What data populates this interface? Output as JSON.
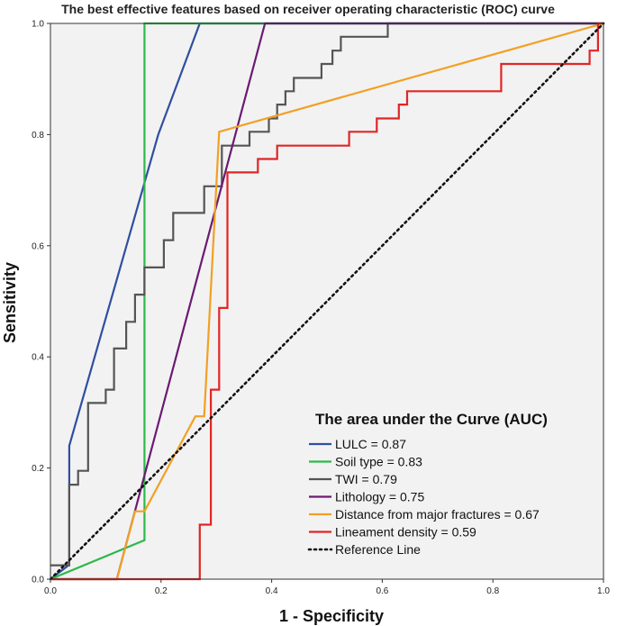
{
  "chart_data": {
    "type": "line",
    "title": "The best  effective features based on receiver operating characteristic (ROC) curve",
    "xlabel": "1 - Specificity",
    "ylabel": "Sensitivity",
    "xlim": [
      0,
      1
    ],
    "ylim": [
      0,
      1
    ],
    "x_ticks": [
      "0.0",
      "0.2",
      "0.4",
      "0.6",
      "0.8",
      "1.0"
    ],
    "y_ticks": [
      "0.0",
      "0.2",
      "0.4",
      "0.6",
      "0.8",
      "1.0"
    ],
    "background": "#f2f2f2",
    "legend": {
      "title": "The area under the Curve (AUC)",
      "position": "bottom-right"
    },
    "series": [
      {
        "name": "LULC = 0.87",
        "color": "#2f4fa0",
        "dash": "solid",
        "points": [
          [
            0,
            0
          ],
          [
            0.034,
            0.026
          ],
          [
            0.034,
            0.24
          ],
          [
            0.195,
            0.8
          ],
          [
            0.27,
            1.0
          ],
          [
            1.0,
            1.0
          ]
        ]
      },
      {
        "name": "Soil type = 0.83",
        "color": "#2db84a",
        "dash": "solid",
        "points": [
          [
            0,
            0
          ],
          [
            0.17,
            0.07
          ],
          [
            0.17,
            1.0
          ],
          [
            1.0,
            1.0
          ]
        ]
      },
      {
        "name": "TWI = 0.79",
        "color": "#555555",
        "dash": "solid",
        "points": [
          [
            0,
            0.025
          ],
          [
            0.034,
            0.025
          ],
          [
            0.034,
            0.17
          ],
          [
            0.05,
            0.17
          ],
          [
            0.05,
            0.195
          ],
          [
            0.068,
            0.195
          ],
          [
            0.068,
            0.317
          ],
          [
            0.1,
            0.317
          ],
          [
            0.1,
            0.341
          ],
          [
            0.115,
            0.341
          ],
          [
            0.115,
            0.415
          ],
          [
            0.137,
            0.415
          ],
          [
            0.137,
            0.463
          ],
          [
            0.153,
            0.463
          ],
          [
            0.153,
            0.512
          ],
          [
            0.17,
            0.512
          ],
          [
            0.17,
            0.561
          ],
          [
            0.205,
            0.561
          ],
          [
            0.205,
            0.61
          ],
          [
            0.222,
            0.61
          ],
          [
            0.222,
            0.659
          ],
          [
            0.278,
            0.659
          ],
          [
            0.278,
            0.707
          ],
          [
            0.31,
            0.707
          ],
          [
            0.31,
            0.78
          ],
          [
            0.36,
            0.78
          ],
          [
            0.36,
            0.805
          ],
          [
            0.395,
            0.805
          ],
          [
            0.395,
            0.829
          ],
          [
            0.41,
            0.829
          ],
          [
            0.41,
            0.854
          ],
          [
            0.425,
            0.854
          ],
          [
            0.425,
            0.878
          ],
          [
            0.44,
            0.878
          ],
          [
            0.44,
            0.902
          ],
          [
            0.49,
            0.902
          ],
          [
            0.49,
            0.927
          ],
          [
            0.51,
            0.927
          ],
          [
            0.51,
            0.951
          ],
          [
            0.525,
            0.951
          ],
          [
            0.525,
            0.976
          ],
          [
            0.61,
            0.976
          ],
          [
            0.61,
            1.0
          ],
          [
            1.0,
            1.0
          ]
        ]
      },
      {
        "name": "Lithology = 0.75",
        "color": "#6b1a73",
        "dash": "solid",
        "points": [
          [
            0,
            0
          ],
          [
            0.12,
            0
          ],
          [
            0.388,
            1.0
          ],
          [
            1.0,
            1.0
          ]
        ]
      },
      {
        "name": "Distance from major fractures = 0.67",
        "color": "#f2a024",
        "dash": "solid",
        "points": [
          [
            0,
            0
          ],
          [
            0.12,
            0
          ],
          [
            0.153,
            0.122
          ],
          [
            0.17,
            0.122
          ],
          [
            0.262,
            0.293
          ],
          [
            0.278,
            0.293
          ],
          [
            0.305,
            0.805
          ],
          [
            1.0,
            1.0
          ]
        ]
      },
      {
        "name": "Lineament density = 0.59",
        "color": "#e02626",
        "dash": "solid",
        "points": [
          [
            0,
            0
          ],
          [
            0.27,
            0
          ],
          [
            0.27,
            0.098
          ],
          [
            0.29,
            0.098
          ],
          [
            0.29,
            0.341
          ],
          [
            0.305,
            0.341
          ],
          [
            0.305,
            0.488
          ],
          [
            0.32,
            0.488
          ],
          [
            0.32,
            0.732
          ],
          [
            0.375,
            0.732
          ],
          [
            0.375,
            0.756
          ],
          [
            0.41,
            0.756
          ],
          [
            0.41,
            0.78
          ],
          [
            0.54,
            0.78
          ],
          [
            0.54,
            0.805
          ],
          [
            0.59,
            0.805
          ],
          [
            0.59,
            0.829
          ],
          [
            0.63,
            0.829
          ],
          [
            0.63,
            0.854
          ],
          [
            0.645,
            0.854
          ],
          [
            0.645,
            0.878
          ],
          [
            0.815,
            0.878
          ],
          [
            0.815,
            0.927
          ],
          [
            0.975,
            0.927
          ],
          [
            0.975,
            0.951
          ],
          [
            0.99,
            0.951
          ],
          [
            0.99,
            1.0
          ],
          [
            1.0,
            1.0
          ]
        ]
      },
      {
        "name": "Reference Line",
        "color": "#111111",
        "dash": "dotted",
        "points": [
          [
            0,
            0
          ],
          [
            1.0,
            1.0
          ]
        ]
      }
    ]
  }
}
